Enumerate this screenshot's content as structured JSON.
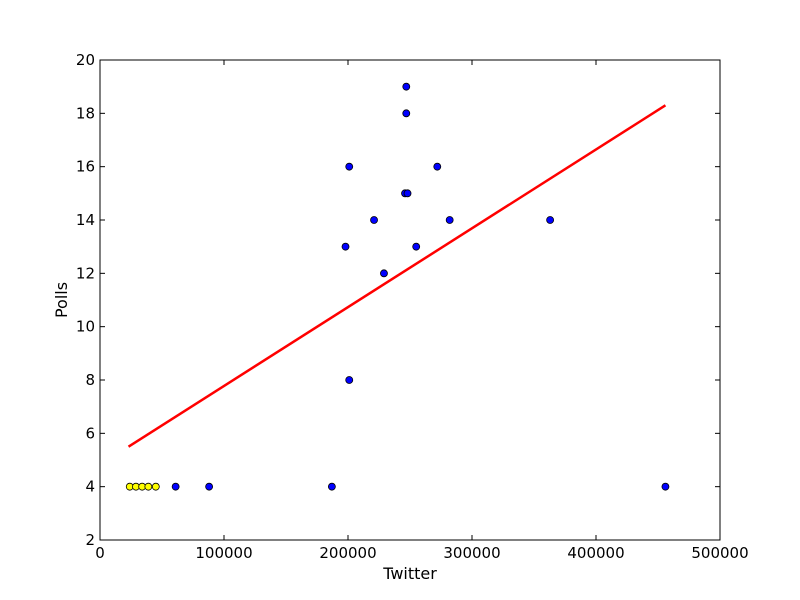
{
  "chart_data": {
    "type": "scatter",
    "xlabel": "Twitter",
    "ylabel": "Polls",
    "xlim": [
      0,
      500000
    ],
    "ylim": [
      2,
      20
    ],
    "xticks": [
      0,
      100000,
      200000,
      300000,
      400000,
      500000
    ],
    "xtick_labels": [
      "0",
      "100000",
      "200000",
      "300000",
      "400000",
      "500000"
    ],
    "yticks": [
      2,
      4,
      6,
      8,
      10,
      12,
      14,
      16,
      18,
      20
    ],
    "ytick_labels": [
      "2",
      "4",
      "6",
      "8",
      "10",
      "12",
      "14",
      "16",
      "18",
      "20"
    ],
    "grid": false,
    "series": [
      {
        "color": "#0000ff",
        "points": [
          [
            247000,
            19
          ],
          [
            247000,
            18
          ],
          [
            201000,
            16
          ],
          [
            272000,
            16
          ],
          [
            246000,
            15
          ],
          [
            248000,
            15
          ],
          [
            221000,
            14
          ],
          [
            282000,
            14
          ],
          [
            363000,
            14
          ],
          [
            198000,
            13
          ],
          [
            255000,
            13
          ],
          [
            229000,
            12
          ],
          [
            201000,
            8
          ],
          [
            61000,
            4
          ],
          [
            88000,
            4
          ],
          [
            187000,
            4
          ],
          [
            456000,
            4
          ]
        ]
      },
      {
        "color": "#ffff00",
        "points": [
          [
            24000,
            4
          ],
          [
            29000,
            4
          ],
          [
            34000,
            4
          ],
          [
            39000,
            4
          ],
          [
            45000,
            4
          ]
        ]
      }
    ],
    "fit_line": {
      "color": "#ff0000",
      "x": [
        23000,
        456000
      ],
      "y": [
        5.5,
        18.3
      ]
    }
  }
}
